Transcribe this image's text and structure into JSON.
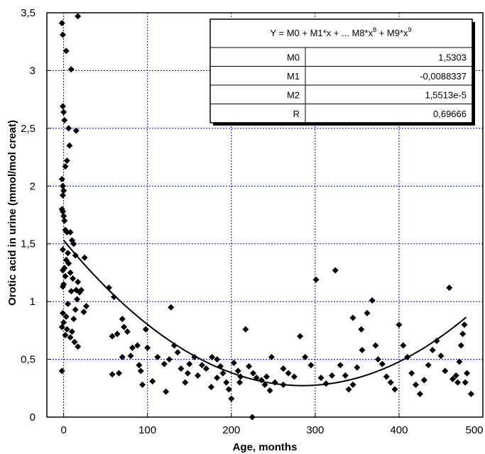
{
  "chart_data": {
    "type": "scatter",
    "xlabel": "Age, months",
    "ylabel": "Orotic acid in urine (mmol/mol creat)",
    "xlim": [
      -20,
      500
    ],
    "ylim": [
      0,
      3.5
    ],
    "x_ticks": [
      "0",
      "100",
      "200",
      "300",
      "400",
      "500"
    ],
    "y_ticks": [
      "0",
      "0,5",
      "1",
      "1,5",
      "2",
      "2,5",
      "3",
      "3,5"
    ],
    "grid": true,
    "grid_color": "#0000ff",
    "marker": "diamond",
    "marker_color": "#000000",
    "fit": {
      "formula": "Y = M0 + M1*x + ... M8*x",
      "formula_sup1": "8",
      "formula_mid": " + M9*x",
      "formula_sup2": "9",
      "params": [
        {
          "name": "M0",
          "value": "1,5303"
        },
        {
          "name": "M1",
          "value": "-0,0088337"
        },
        {
          "name": "M2",
          "value": "1,5513e-5"
        },
        {
          "name": "R",
          "value": "0,69666"
        }
      ],
      "coefficients": [
        1.5303,
        -0.0088337,
        1.5513e-05
      ]
    },
    "points": [
      [
        -2,
        3.41
      ],
      [
        -1,
        3.31
      ],
      [
        3,
        3.17
      ],
      [
        9,
        3.01
      ],
      [
        17,
        3.47
      ],
      [
        -1,
        2.69
      ],
      [
        0,
        2.64
      ],
      [
        1,
        2.57
      ],
      [
        6,
        2.5
      ],
      [
        15,
        2.48
      ],
      [
        7,
        2.35
      ],
      [
        4,
        2.22
      ],
      [
        2,
        2.17
      ],
      [
        -2,
        2.06
      ],
      [
        -1,
        2.0
      ],
      [
        0,
        1.96
      ],
      [
        -1,
        1.92
      ],
      [
        -2,
        1.8
      ],
      [
        -1,
        1.78
      ],
      [
        0,
        1.74
      ],
      [
        1,
        1.7
      ],
      [
        2,
        1.62
      ],
      [
        4,
        1.6
      ],
      [
        8,
        1.6
      ],
      [
        10,
        1.53
      ],
      [
        12,
        1.5
      ],
      [
        -1,
        1.45
      ],
      [
        5,
        1.42
      ],
      [
        14,
        1.4
      ],
      [
        25,
        1.38
      ],
      [
        3,
        1.36
      ],
      [
        6,
        1.33
      ],
      [
        1,
        1.29
      ],
      [
        -1,
        1.27
      ],
      [
        8,
        1.25
      ],
      [
        2,
        1.22
      ],
      [
        11,
        1.2
      ],
      [
        17,
        1.17
      ],
      [
        0,
        1.15
      ],
      [
        -1,
        1.13
      ],
      [
        15,
        1.1
      ],
      [
        9,
        1.09
      ],
      [
        19,
        1.08
      ],
      [
        21,
        1.1
      ],
      [
        16,
        1.02
      ],
      [
        5,
        0.98
      ],
      [
        27,
        0.96
      ],
      [
        14,
        0.93
      ],
      [
        24,
        0.91
      ],
      [
        -1,
        0.9
      ],
      [
        3,
        0.87
      ],
      [
        12,
        0.85
      ],
      [
        0,
        0.82
      ],
      [
        -2,
        0.78
      ],
      [
        4,
        0.76
      ],
      [
        10,
        0.74
      ],
      [
        2,
        0.71
      ],
      [
        8,
        0.69
      ],
      [
        13,
        0.65
      ],
      [
        17,
        0.61
      ],
      [
        -2,
        0.4
      ],
      [
        54,
        1.12
      ],
      [
        60,
        1.04
      ],
      [
        70,
        0.85
      ],
      [
        72,
        0.78
      ],
      [
        64,
        0.72
      ],
      [
        76,
        0.74
      ],
      [
        58,
        0.7
      ],
      [
        82,
        0.6
      ],
      [
        80,
        0.53
      ],
      [
        70,
        0.52
      ],
      [
        66,
        0.38
      ],
      [
        58,
        0.37
      ],
      [
        90,
        0.45
      ],
      [
        92,
        0.4
      ],
      [
        106,
        0.31
      ],
      [
        112,
        0.52
      ],
      [
        120,
        0.46
      ],
      [
        100,
        0.6
      ],
      [
        88,
        0.62
      ],
      [
        98,
        0.76
      ],
      [
        128,
        0.95
      ],
      [
        132,
        0.62
      ],
      [
        136,
        0.56
      ],
      [
        126,
        0.5
      ],
      [
        140,
        0.42
      ],
      [
        150,
        0.46
      ],
      [
        148,
        0.38
      ],
      [
        145,
        0.3
      ],
      [
        122,
        0.22
      ],
      [
        94,
        0.28
      ],
      [
        156,
        0.52
      ],
      [
        160,
        0.36
      ],
      [
        165,
        0.45
      ],
      [
        170,
        0.42
      ],
      [
        177,
        0.52
      ],
      [
        183,
        0.5
      ],
      [
        187,
        0.44
      ],
      [
        190,
        0.38
      ],
      [
        194,
        0.3
      ],
      [
        197,
        0.24
      ],
      [
        200,
        0.16
      ],
      [
        203,
        0.47
      ],
      [
        208,
        0.4
      ],
      [
        211,
        0.35
      ],
      [
        217,
        0.76
      ],
      [
        221,
        0.44
      ],
      [
        226,
        0.38
      ],
      [
        230,
        0.34
      ],
      [
        236,
        0.32
      ],
      [
        242,
        0.35
      ],
      [
        248,
        0.52
      ],
      [
        252,
        0.3
      ],
      [
        262,
        0.42
      ],
      [
        268,
        0.38
      ],
      [
        275,
        0.35
      ],
      [
        282,
        0.7
      ],
      [
        288,
        0.52
      ],
      [
        295,
        0.45
      ],
      [
        301,
        1.19
      ],
      [
        307,
        0.34
      ],
      [
        313,
        0.29
      ],
      [
        320,
        0.36
      ],
      [
        324,
        1.27
      ],
      [
        330,
        0.45
      ],
      [
        336,
        0.36
      ],
      [
        340,
        0.24
      ],
      [
        345,
        0.28
      ],
      [
        350,
        0.43
      ],
      [
        356,
        0.58
      ],
      [
        362,
        0.9
      ],
      [
        368,
        1.01
      ],
      [
        372,
        0.62
      ],
      [
        375,
        0.5
      ],
      [
        380,
        0.46
      ],
      [
        385,
        0.35
      ],
      [
        390,
        0.3
      ],
      [
        395,
        0.24
      ],
      [
        400,
        0.8
      ],
      [
        405,
        0.62
      ],
      [
        410,
        0.52
      ],
      [
        415,
        0.38
      ],
      [
        420,
        0.28
      ],
      [
        425,
        0.2
      ],
      [
        430,
        0.32
      ],
      [
        435,
        0.45
      ],
      [
        440,
        0.58
      ],
      [
        445,
        0.66
      ],
      [
        450,
        0.53
      ],
      [
        455,
        0.4
      ],
      [
        460,
        1.12
      ],
      [
        464,
        0.33
      ],
      [
        468,
        0.36
      ],
      [
        470,
        0.3
      ],
      [
        472,
        0.48
      ],
      [
        474,
        0.62
      ],
      [
        476,
        0.72
      ],
      [
        478,
        0.8
      ],
      [
        481,
        0.38
      ],
      [
        479,
        0.3
      ],
      [
        486,
        0.2
      ],
      [
        225,
        0.0
      ],
      [
        183,
        0.34
      ],
      [
        246,
        0.23
      ],
      [
        262,
        0.28
      ],
      [
        345,
        0.86
      ],
      [
        355,
        0.76
      ],
      [
        210,
        0.3
      ],
      [
        240,
        0.28
      ],
      [
        176,
        0.26
      ]
    ]
  }
}
